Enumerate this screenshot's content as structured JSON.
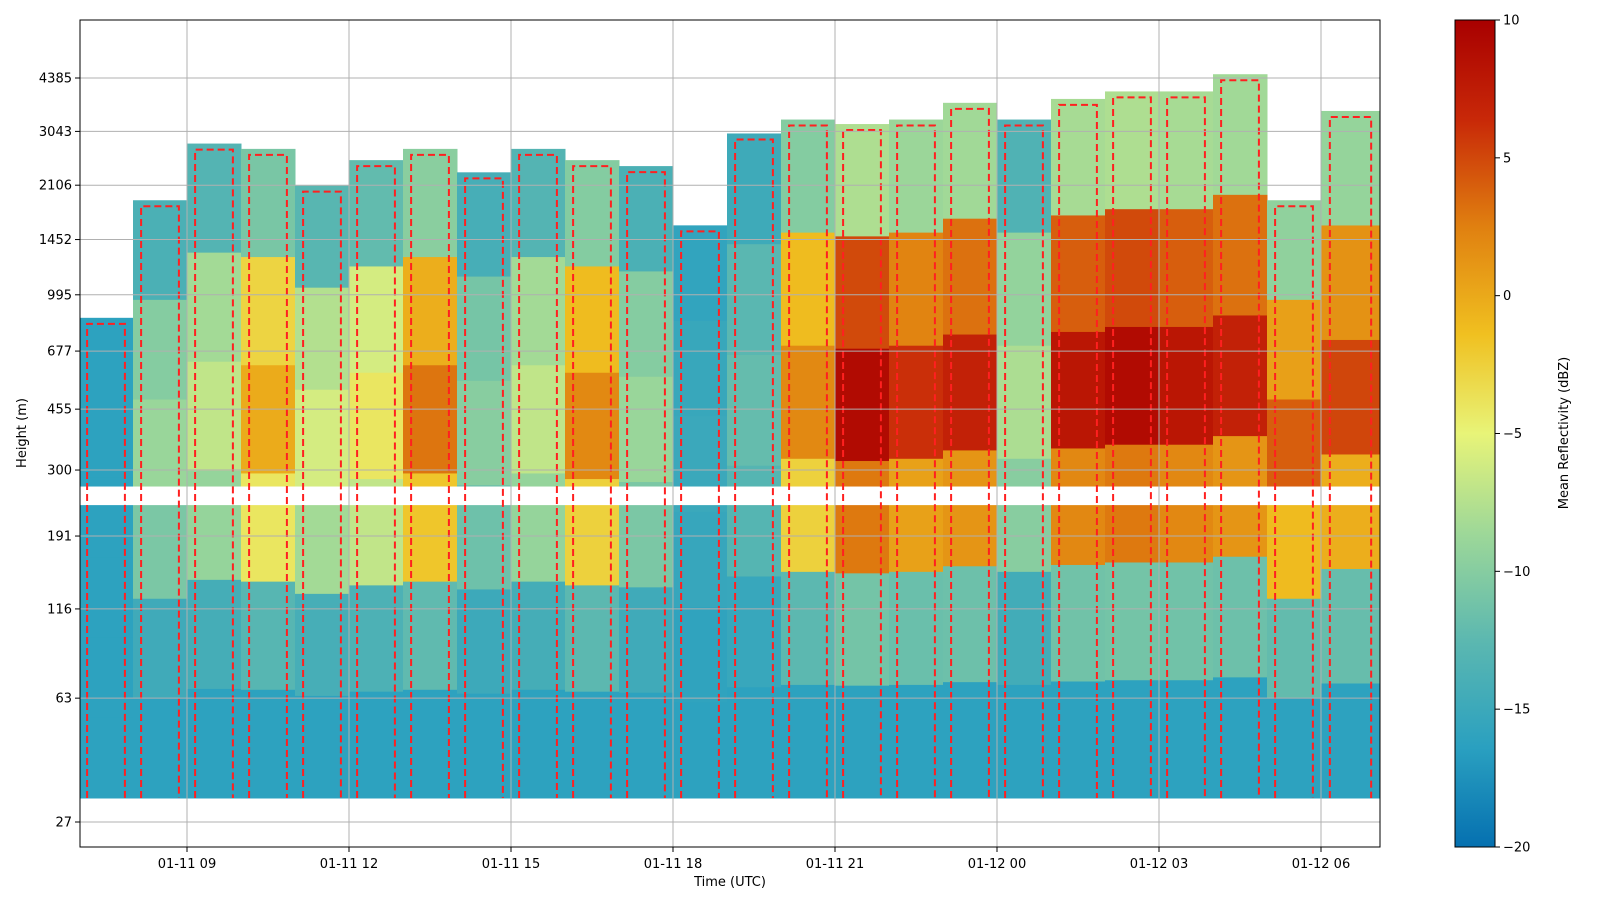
{
  "chart_data": {
    "type": "heatmap",
    "title": "",
    "xlabel": "Time (UTC)",
    "ylabel": "Height (m)",
    "x_tick_labels": [
      "01-11 09",
      "01-11 12",
      "01-11 15",
      "01-11 18",
      "01-11 21",
      "01-12 00",
      "01-12 03",
      "01-12 06"
    ],
    "x_range": [
      "01-11 07:00",
      "01-12 06:55"
    ],
    "y_tick_labels": [
      "27",
      "63",
      "116",
      "191",
      "300",
      "455",
      "677",
      "995",
      "1452",
      "2106",
      "3043",
      "4385"
    ],
    "y_scale": "log",
    "grid": true,
    "colorbar": {
      "label": "Mean Reflectivity (dBZ)",
      "range": [
        -20,
        10
      ],
      "ticks": [
        10,
        5,
        0,
        -5,
        -10,
        -15,
        -20
      ],
      "colormap": [
        "#0570b0",
        "#2aa0c0",
        "#5cb8b0",
        "#9ed898",
        "#e8f478",
        "#f0c020",
        "#e08010",
        "#c82808",
        "#a80000"
      ]
    },
    "contour": {
      "style": "dashed",
      "color": "#ff2020"
    },
    "columns": [
      {
        "time": "01-11 07:00",
        "top_m": 850,
        "dbz": -16
      },
      {
        "time": "01-11 08:00",
        "top_m": 1900,
        "dbz": -9
      },
      {
        "time": "01-11 09:00",
        "top_m": 2800,
        "dbz": -7
      },
      {
        "time": "01-11 10:00",
        "top_m": 2700,
        "dbz": 0
      },
      {
        "time": "01-11 11:00",
        "top_m": 2100,
        "dbz": -6
      },
      {
        "time": "01-11 12:00",
        "top_m": 2500,
        "dbz": -4
      },
      {
        "time": "01-11 13:00",
        "top_m": 2700,
        "dbz": 3
      },
      {
        "time": "01-11 14:00",
        "top_m": 2300,
        "dbz": -10
      },
      {
        "time": "01-11 15:00",
        "top_m": 2700,
        "dbz": -7
      },
      {
        "time": "01-11 16:00",
        "top_m": 2500,
        "dbz": 2
      },
      {
        "time": "01-11 17:00",
        "top_m": 2400,
        "dbz": -9
      },
      {
        "time": "01-11 18:00",
        "top_m": 1600,
        "dbz": -15
      },
      {
        "time": "01-11 19:00",
        "top_m": 3000,
        "dbz": -12
      },
      {
        "time": "01-11 20:00",
        "top_m": 3300,
        "dbz": 2
      },
      {
        "time": "01-11 21:00",
        "top_m": 3200,
        "dbz": 9
      },
      {
        "time": "01-11 22:00",
        "top_m": 3300,
        "dbz": 6
      },
      {
        "time": "01-11 23:00",
        "top_m": 3700,
        "dbz": 7
      },
      {
        "time": "01-12 00:00",
        "top_m": 3300,
        "dbz": -8
      },
      {
        "time": "01-12 01:00",
        "top_m": 3800,
        "dbz": 8
      },
      {
        "time": "01-12 02:00",
        "top_m": 4000,
        "dbz": 9
      },
      {
        "time": "01-12 03:00",
        "top_m": 4000,
        "dbz": 8
      },
      {
        "time": "01-12 04:00",
        "top_m": 4500,
        "dbz": 7
      },
      {
        "time": "01-12 05:00",
        "top_m": 1900,
        "dbz": 4
      },
      {
        "time": "01-12 06:00",
        "top_m": 3500,
        "dbz": 5
      }
    ]
  }
}
